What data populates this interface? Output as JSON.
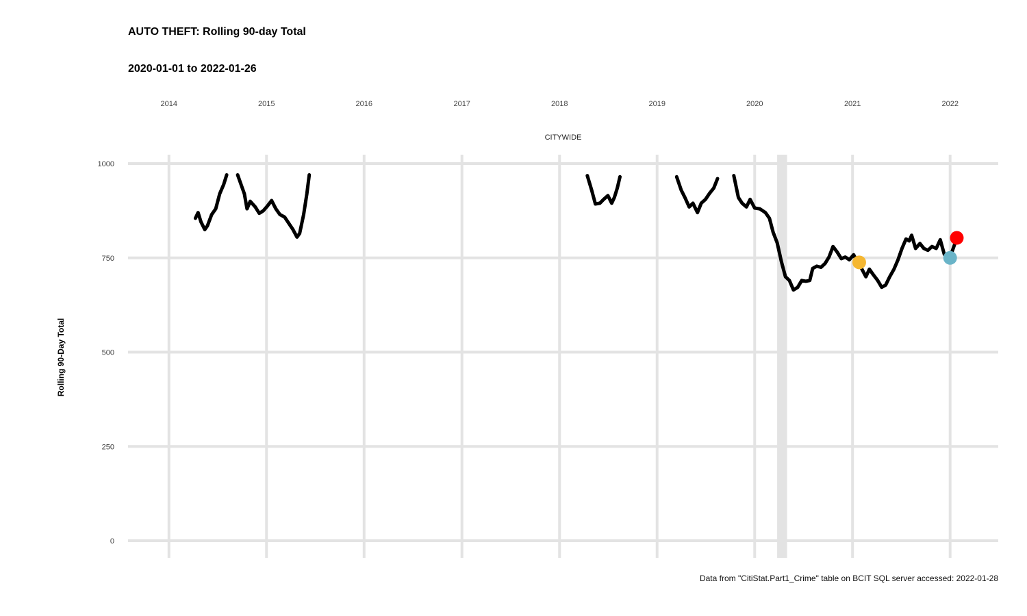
{
  "chart_data": {
    "type": "line",
    "title": "AUTO THEFT: Rolling 90-day Total",
    "subtitle": "2020-01-01 to 2022-01-26",
    "facet_label": "CITYWIDE",
    "ylabel": "Rolling 90-Day Total",
    "caption": "Data from \"CitiStat.Part1_Crime\" table on BCIT SQL server accessed: 2022-01-28",
    "ylim": [
      0,
      1000
    ],
    "yticks": [
      0,
      250,
      500,
      750,
      1000
    ],
    "xlim": [
      "2013-08-01",
      "2022-06-30"
    ],
    "xticks": [
      {
        "date": "2014-01-01",
        "label": "2014"
      },
      {
        "date": "2015-01-01",
        "label": "2015"
      },
      {
        "date": "2016-01-01",
        "label": "2016"
      },
      {
        "date": "2017-01-01",
        "label": "2017"
      },
      {
        "date": "2018-01-01",
        "label": "2018"
      },
      {
        "date": "2019-01-01",
        "label": "2019"
      },
      {
        "date": "2020-01-01",
        "label": "2020"
      },
      {
        "date": "2021-01-01",
        "label": "2021"
      },
      {
        "date": "2022-01-01",
        "label": "2022"
      }
    ],
    "grid": true,
    "shaded_band": {
      "start": "2020-03-25",
      "end": "2020-05-01",
      "color": "#e3e3e3"
    },
    "series": [
      {
        "color": "#000000",
        "segments": [
          [
            [
              "2014-04-10",
              855
            ],
            [
              "2014-04-20",
              870
            ],
            [
              "2014-05-01",
              845
            ],
            [
              "2014-05-15",
              825
            ],
            [
              "2014-05-25",
              835
            ],
            [
              "2014-06-10",
              865
            ],
            [
              "2014-06-25",
              880
            ],
            [
              "2014-07-10",
              920
            ],
            [
              "2014-07-25",
              945
            ],
            [
              "2014-08-05",
              970
            ]
          ],
          [
            [
              "2014-09-15",
              970
            ],
            [
              "2014-09-25",
              950
            ],
            [
              "2014-10-10",
              920
            ],
            [
              "2014-10-20",
              880
            ],
            [
              "2014-11-01",
              900
            ],
            [
              "2014-11-20",
              885
            ],
            [
              "2014-12-05",
              868
            ],
            [
              "2014-12-20",
              875
            ],
            [
              "2015-01-05",
              888
            ],
            [
              "2015-01-20",
              902
            ],
            [
              "2015-02-05",
              880
            ],
            [
              "2015-02-20",
              865
            ],
            [
              "2015-03-10",
              858
            ],
            [
              "2015-03-25",
              842
            ],
            [
              "2015-04-10",
              825
            ],
            [
              "2015-04-25",
              805
            ],
            [
              "2015-05-05",
              815
            ],
            [
              "2015-05-20",
              865
            ],
            [
              "2015-06-01",
              920
            ],
            [
              "2015-06-10",
              970
            ]
          ],
          [
            [
              "2018-04-15",
              968
            ],
            [
              "2018-05-01",
              930
            ],
            [
              "2018-05-15",
              893
            ],
            [
              "2018-06-01",
              895
            ],
            [
              "2018-06-15",
              905
            ],
            [
              "2018-07-01",
              915
            ],
            [
              "2018-07-15",
              895
            ],
            [
              "2018-07-25",
              910
            ],
            [
              "2018-08-05",
              935
            ],
            [
              "2018-08-15",
              965
            ]
          ],
          [
            [
              "2019-03-15",
              965
            ],
            [
              "2019-04-01",
              930
            ],
            [
              "2019-04-15",
              910
            ],
            [
              "2019-05-01",
              885
            ],
            [
              "2019-05-15",
              895
            ],
            [
              "2019-06-01",
              870
            ],
            [
              "2019-06-15",
              895
            ],
            [
              "2019-07-01",
              905
            ],
            [
              "2019-07-15",
              920
            ],
            [
              "2019-08-01",
              935
            ],
            [
              "2019-08-15",
              960
            ]
          ],
          [
            [
              "2019-10-15",
              968
            ],
            [
              "2019-11-01",
              910
            ],
            [
              "2019-11-15",
              895
            ],
            [
              "2019-12-01",
              885
            ],
            [
              "2019-12-15",
              905
            ],
            [
              "2020-01-01",
              882
            ],
            [
              "2020-01-20",
              880
            ],
            [
              "2020-02-10",
              870
            ],
            [
              "2020-02-25",
              855
            ],
            [
              "2020-03-10",
              818
            ],
            [
              "2020-03-25",
              790
            ],
            [
              "2020-04-10",
              740
            ],
            [
              "2020-04-25",
              700
            ],
            [
              "2020-05-10",
              690
            ],
            [
              "2020-05-25",
              665
            ],
            [
              "2020-06-10",
              672
            ],
            [
              "2020-06-25",
              690
            ],
            [
              "2020-07-10",
              688
            ],
            [
              "2020-07-25",
              690
            ],
            [
              "2020-08-05",
              722
            ],
            [
              "2020-08-20",
              728
            ],
            [
              "2020-09-05",
              725
            ],
            [
              "2020-09-20",
              735
            ],
            [
              "2020-10-05",
              752
            ],
            [
              "2020-10-20",
              780
            ],
            [
              "2020-11-05",
              765
            ],
            [
              "2020-11-20",
              748
            ],
            [
              "2020-12-05",
              752
            ],
            [
              "2020-12-20",
              745
            ],
            [
              "2021-01-05",
              758
            ],
            [
              "2021-01-20",
              738
            ],
            [
              "2021-02-05",
              720
            ],
            [
              "2021-02-20",
              700
            ],
            [
              "2021-03-05",
              720
            ],
            [
              "2021-03-20",
              705
            ],
            [
              "2021-04-05",
              690
            ],
            [
              "2021-04-20",
              672
            ],
            [
              "2021-05-05",
              678
            ],
            [
              "2021-05-20",
              700
            ],
            [
              "2021-06-05",
              720
            ],
            [
              "2021-06-20",
              745
            ],
            [
              "2021-07-05",
              775
            ],
            [
              "2021-07-20",
              800
            ],
            [
              "2021-08-01",
              795
            ],
            [
              "2021-08-10",
              810
            ],
            [
              "2021-08-25",
              775
            ],
            [
              "2021-09-10",
              788
            ],
            [
              "2021-09-25",
              775
            ],
            [
              "2021-10-10",
              770
            ],
            [
              "2021-10-25",
              780
            ],
            [
              "2021-11-10",
              775
            ],
            [
              "2021-11-25",
              798
            ],
            [
              "2021-12-10",
              760
            ],
            [
              "2021-12-20",
              748
            ],
            [
              "2022-01-01",
              752
            ],
            [
              "2022-01-15",
              780
            ],
            [
              "2022-01-26",
              803
            ]
          ]
        ]
      }
    ],
    "points": [
      {
        "date": "2021-01-26",
        "value": 738,
        "color": "#f5b731"
      },
      {
        "date": "2022-01-01",
        "value": 750,
        "color": "#6ab4c8"
      },
      {
        "date": "2022-01-26",
        "value": 803,
        "color": "#ff0000"
      }
    ]
  }
}
